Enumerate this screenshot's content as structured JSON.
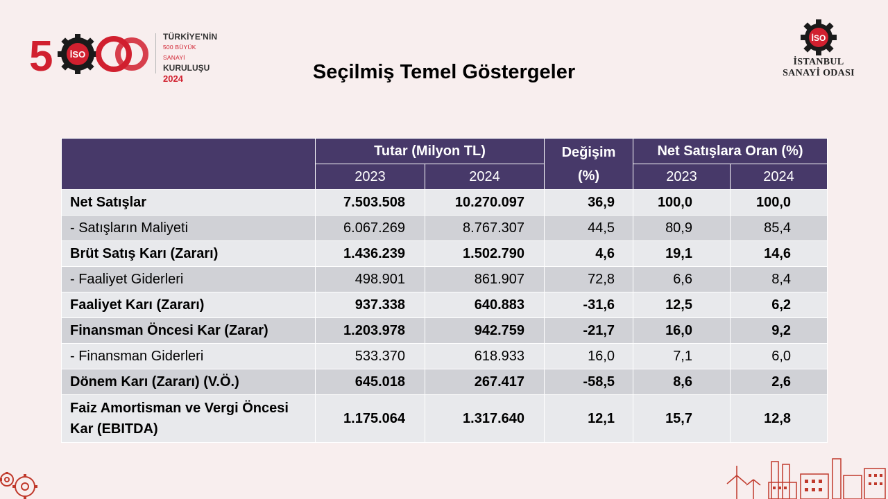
{
  "header": {
    "badge_lines": [
      "TÜRKİYE'NİN",
      "500 BÜYÜK SANAYİ",
      "KURULUŞU",
      "2024"
    ],
    "logo_500": "500",
    "iso_mark": "İSO",
    "org_name_lines": [
      "İSTANBUL",
      "SANAYİ ODASI"
    ],
    "title": "Seçilmiş Temel Göstergeler"
  },
  "table": {
    "headers": {
      "amount_group": "Tutar (Milyon TL)",
      "change": "Değişim (%)",
      "ratio_group": "Net Satışlara Oran (%)",
      "years": [
        "2023",
        "2024",
        "2023",
        "2024"
      ]
    },
    "rows": [
      {
        "label": "Net Satışlar",
        "bold": true,
        "v2023": "7.503.508",
        "v2024": "10.270.097",
        "change": "36,9",
        "r2023": "100,0",
        "r2024": "100,0"
      },
      {
        "label": "- Satışların Maliyeti",
        "bold": false,
        "v2023": "6.067.269",
        "v2024": "8.767.307",
        "change": "44,5",
        "r2023": "80,9",
        "r2024": "85,4"
      },
      {
        "label": "Brüt Satış Karı (Zararı)",
        "bold": true,
        "v2023": "1.436.239",
        "v2024": "1.502.790",
        "change": "4,6",
        "r2023": "19,1",
        "r2024": "14,6"
      },
      {
        "label": "- Faaliyet Giderleri",
        "bold": false,
        "v2023": "498.901",
        "v2024": "861.907",
        "change": "72,8",
        "r2023": "6,6",
        "r2024": "8,4"
      },
      {
        "label": "Faaliyet Karı (Zararı)",
        "bold": true,
        "v2023": "937.338",
        "v2024": "640.883",
        "change": "-31,6",
        "r2023": "12,5",
        "r2024": "6,2"
      },
      {
        "label": "Finansman Öncesi Kar (Zarar)",
        "bold": true,
        "v2023": "1.203.978",
        "v2024": "942.759",
        "change": "-21,7",
        "r2023": "16,0",
        "r2024": "9,2"
      },
      {
        "label": "- Finansman Giderleri",
        "bold": false,
        "v2023": "533.370",
        "v2024": "618.933",
        "change": "16,0",
        "r2023": "7,1",
        "r2024": "6,0"
      },
      {
        "label": "Dönem Karı (Zararı) (V.Ö.)",
        "bold": true,
        "v2023": "645.018",
        "v2024": "267.417",
        "change": "-58,5",
        "r2023": "8,6",
        "r2024": "2,6"
      },
      {
        "label": "Faiz Amortisman ve Vergi Öncesi Kar (EBITDA)",
        "bold": true,
        "v2023": "1.175.064",
        "v2024": "1.317.640",
        "change": "12,1",
        "r2023": "15,7",
        "r2024": "12,8"
      }
    ]
  },
  "colors": {
    "header_bg": "#473969",
    "row_light": "#e8e9ec",
    "row_dark": "#d0d1d6",
    "brand_red": "#d1202f",
    "page_bg": "#f8eeee"
  },
  "icons": [
    "gear-logo-icon",
    "iso-gear-icon",
    "gears-decoration-icon",
    "factory-skyline-icon"
  ]
}
